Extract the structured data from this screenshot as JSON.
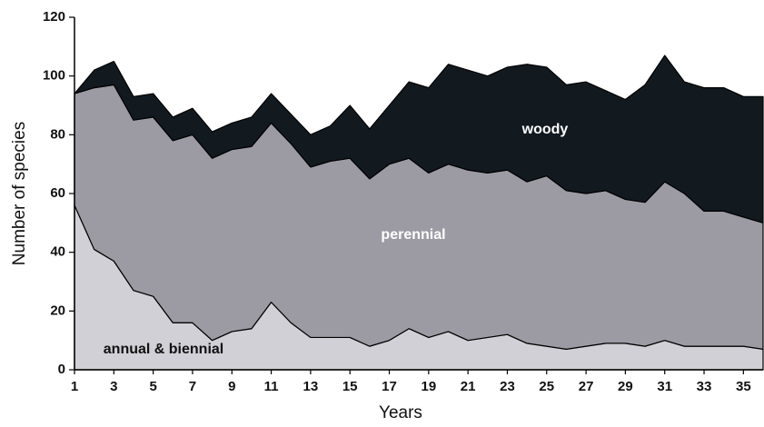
{
  "chart_data": {
    "type": "stacked-area",
    "x_label": "Years",
    "y_label": "Number of species",
    "x": [
      1,
      2,
      3,
      4,
      5,
      6,
      7,
      8,
      9,
      10,
      11,
      12,
      13,
      14,
      15,
      16,
      17,
      18,
      19,
      20,
      21,
      22,
      23,
      24,
      25,
      26,
      27,
      28,
      29,
      30,
      31,
      32,
      33,
      34,
      35,
      36
    ],
    "series": [
      {
        "name": "annual & biennial",
        "color": "#d0d0d6",
        "label_color": "#111111",
        "values": [
          56,
          41,
          37,
          27,
          25,
          16,
          16,
          10,
          13,
          14,
          23,
          16,
          11,
          11,
          11,
          8,
          10,
          14,
          11,
          13,
          10,
          11,
          12,
          9,
          8,
          7,
          8,
          9,
          9,
          8,
          10,
          8,
          8,
          8,
          8,
          7
        ]
      },
      {
        "name": "perennial",
        "color": "#9c9ba3",
        "label_color": "#ffffff",
        "values": [
          38,
          55,
          60,
          58,
          61,
          62,
          64,
          62,
          62,
          62,
          61,
          61,
          58,
          60,
          61,
          57,
          60,
          58,
          56,
          57,
          58,
          56,
          56,
          55,
          58,
          54,
          52,
          52,
          49,
          49,
          54,
          52,
          46,
          46,
          44,
          43
        ]
      },
      {
        "name": "woody",
        "color": "#121a20",
        "label_color": "#ffffff",
        "values": [
          0,
          6,
          8,
          8,
          8,
          8,
          9,
          9,
          9,
          10,
          10,
          10,
          11,
          12,
          18,
          17,
          20,
          26,
          29,
          34,
          34,
          33,
          35,
          40,
          37,
          36,
          38,
          34,
          34,
          40,
          43,
          38,
          42,
          42,
          41,
          43
        ]
      }
    ],
    "xlim": [
      1,
      36
    ],
    "ylim": [
      0,
      120
    ],
    "xticks": [
      1,
      3,
      5,
      7,
      9,
      11,
      13,
      15,
      17,
      19,
      21,
      23,
      25,
      27,
      29,
      31,
      33,
      35
    ],
    "yticks": [
      0,
      20,
      40,
      60,
      80,
      100,
      120
    ]
  }
}
